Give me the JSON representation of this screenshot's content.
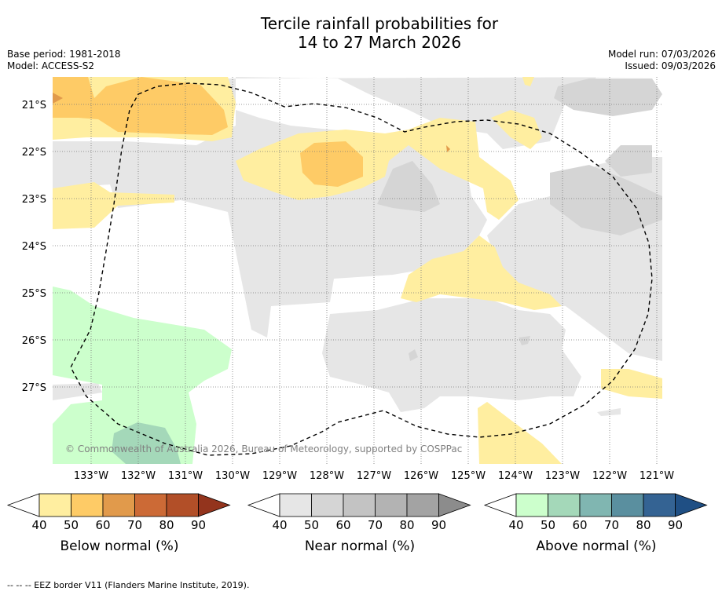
{
  "title": {
    "line1": "Tercile rainfall probabilities for",
    "line2": "14 to 27 March 2026"
  },
  "meta": {
    "base_period": "Base period: 1981-2018",
    "model": "Model: ACCESS-S2",
    "model_run": "Model run: 07/03/2026",
    "issued": "Issued: 09/03/2026"
  },
  "map": {
    "lat_labels": [
      "21°S",
      "22°S",
      "23°S",
      "24°S",
      "25°S",
      "26°S",
      "27°S"
    ],
    "lon_labels": [
      "133°W",
      "132°W",
      "131°W",
      "130°W",
      "129°W",
      "128°W",
      "127°W",
      "126°W",
      "125°W",
      "124°W",
      "123°W",
      "122°W",
      "121°W"
    ],
    "copyright": "© Commonwealth of Australia 2026, Bureau of Meteorology, supported by COSPPac"
  },
  "colorbars": [
    {
      "name": "below",
      "title": "Below normal (%)",
      "ticks": [
        "40",
        "50",
        "60",
        "70",
        "80",
        "90"
      ],
      "colors": [
        "#ffeea0",
        "#fecb66",
        "#e19a4b",
        "#cc6a36",
        "#b24f28",
        "#93341d"
      ]
    },
    {
      "name": "near",
      "title": "Near normal (%)",
      "ticks": [
        "40",
        "50",
        "60",
        "70",
        "80",
        "90"
      ],
      "colors": [
        "#e6e6e6",
        "#d5d5d5",
        "#c3c3c3",
        "#b3b3b3",
        "#a3a3a3",
        "#8c8c8c"
      ]
    },
    {
      "name": "above",
      "title": "Above normal (%)",
      "ticks": [
        "40",
        "50",
        "60",
        "70",
        "80",
        "90"
      ],
      "colors": [
        "#ccffcc",
        "#a4d8b9",
        "#80b6b1",
        "#5a8f9f",
        "#346393",
        "#1f4f84"
      ]
    }
  ],
  "footnote": "--  --  -- EEZ border V11 (Flanders Marine Institute, 2019).",
  "colors": {
    "grid": "#777777",
    "near_light": "#e6e6e6",
    "near_mid": "#d5d5d5",
    "below_light": "#ffeea0",
    "below_mid": "#fecb66",
    "below_high": "#e19a4b",
    "above_light": "#ccffcc",
    "above_mid": "#a4d8b9"
  }
}
